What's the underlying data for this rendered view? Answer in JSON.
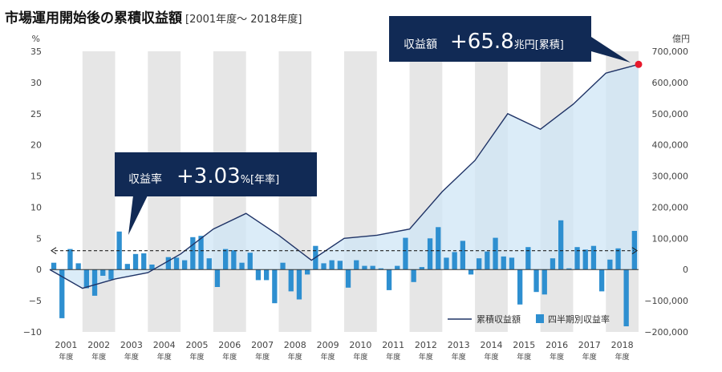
{
  "title": "市場運用開始後の累積収益額",
  "subtitle": "[2001年度～ 2018年度]",
  "chart_data": {
    "type": "bar+area",
    "y_left": {
      "unit": "%",
      "min": -10,
      "max": 35,
      "ticks": [
        -10,
        -5,
        0,
        5,
        10,
        15,
        20,
        25,
        30,
        35
      ]
    },
    "y_right": {
      "unit": "億円",
      "min": -200000,
      "max": 700000,
      "ticks": [
        -200000,
        -100000,
        0,
        100000,
        200000,
        300000,
        400000,
        500000,
        600000,
        700000
      ],
      "tick_labels": [
        "−200,000",
        "−100,000",
        "0",
        "100,000",
        "200,000",
        "300,000",
        "400,000",
        "500,000",
        "600,000",
        "700,000"
      ]
    },
    "y_left_tick_labels": [
      "−10",
      "−5",
      "0",
      "5",
      "10",
      "15",
      "20",
      "25",
      "30",
      "35"
    ],
    "categories": [
      "2001",
      "2002",
      "2003",
      "2004",
      "2005",
      "2006",
      "2007",
      "2008",
      "2009",
      "2010",
      "2011",
      "2012",
      "2013",
      "2014",
      "2015",
      "2016",
      "2017",
      "2018"
    ],
    "category_suffix": "年度",
    "shaded_years_alternate": true,
    "quarterly_return_pct": [
      [
        1.1,
        -7.8,
        3.3,
        1.0
      ],
      [
        -3.0,
        -4.2,
        -1.0,
        -1.6
      ],
      [
        6.1,
        0.9,
        2.5,
        2.6
      ],
      [
        0.8,
        0.1,
        2.0,
        1.9
      ],
      [
        1.5,
        5.2,
        5.4,
        1.8
      ],
      [
        -2.8,
        3.3,
        3.1,
        1.1
      ],
      [
        2.7,
        -1.7,
        -1.7,
        -5.4
      ],
      [
        1.1,
        -3.5,
        -4.8,
        -0.8
      ],
      [
        3.8,
        1.0,
        1.5,
        1.4
      ],
      [
        -2.9,
        1.5,
        0.6,
        0.6
      ],
      [
        0.2,
        -3.3,
        0.6,
        5.1
      ],
      [
        -2.0,
        0.4,
        5.0,
        6.8
      ],
      [
        1.9,
        2.8,
        4.6,
        -0.8
      ],
      [
        1.8,
        2.9,
        5.1,
        2.1
      ],
      [
        1.9,
        -5.6,
        3.6,
        -3.6
      ],
      [
        -4.0,
        1.8,
        7.9,
        0.2
      ],
      [
        3.6,
        3.2,
        3.8,
        -3.5
      ],
      [
        1.6,
        3.4,
        -9.1,
        6.2
      ]
    ],
    "cumulative_return_oku_yen": [
      -60000,
      -30000,
      -10000,
      50000,
      130000,
      180000,
      110000,
      30000,
      100000,
      110000,
      130000,
      250000,
      350000,
      500000,
      450000,
      530000,
      630000,
      658000
    ],
    "average_return_line_pct": 3.03,
    "legend": [
      "累積収益額",
      "四半期別収益率"
    ],
    "colors": {
      "bar": "#2e8fd0",
      "line": "#1f3366",
      "area": "#cfe6f5",
      "shade": "#e6e6e6",
      "callout": "#112a55",
      "endpoint": "#e8192c"
    }
  },
  "callouts": {
    "rate": {
      "label": "収益率",
      "value": "+3.03",
      "unit": "%",
      "note": "[年率]"
    },
    "amount": {
      "label": "収益額",
      "value": "+65.8",
      "unit": "兆円",
      "note": "[累積]"
    }
  }
}
